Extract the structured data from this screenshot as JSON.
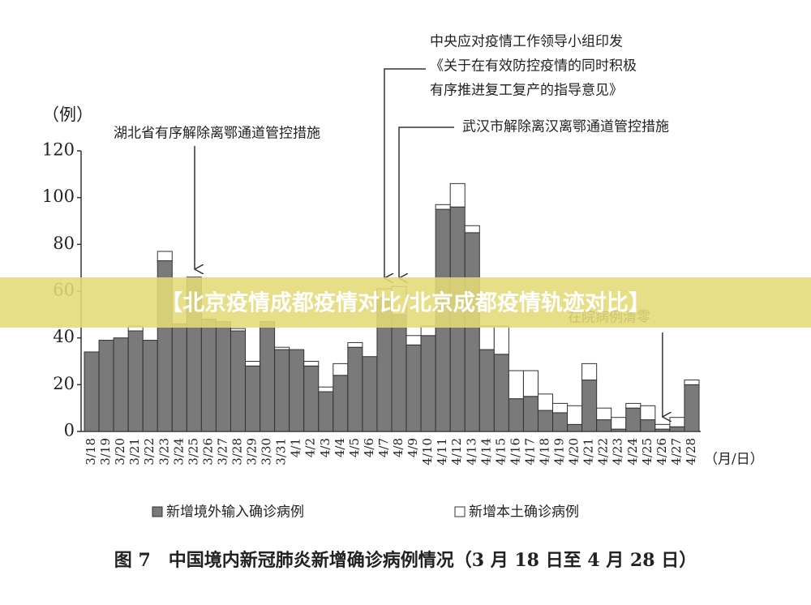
{
  "chart_data": {
    "type": "stacked_bar",
    "y_label": "（例）",
    "x_label": "（月/日）",
    "caption": "图 7　中国境内新冠肺炎新增确诊病例情况（3 月 18 日至 4 月 28 日）",
    "categories": [
      "3/18",
      "3/19",
      "3/20",
      "3/21",
      "3/22",
      "3/23",
      "3/24",
      "3/25",
      "3/26",
      "3/27",
      "3/28",
      "3/29",
      "3/30",
      "3/31",
      "4/1",
      "4/2",
      "4/3",
      "4/4",
      "4/5",
      "4/6",
      "4/7",
      "4/8",
      "4/9",
      "4/10",
      "4/11",
      "4/12",
      "4/13",
      "4/14",
      "4/15",
      "4/16",
      "4/17",
      "4/18",
      "4/19",
      "4/20",
      "4/21",
      "4/22",
      "4/23",
      "4/24",
      "4/25",
      "4/26",
      "4/27",
      "4/28"
    ],
    "series": [
      {
        "name": "新增境外输入确诊病例",
        "color": "#7a7a7a",
        "values": [
          34,
          39,
          40,
          43,
          39,
          73,
          46,
          66,
          48,
          47,
          43,
          28,
          47,
          35,
          35,
          28,
          17,
          24,
          36,
          32,
          57,
          50,
          37,
          41,
          95,
          96,
          85,
          35,
          33,
          14,
          15,
          9,
          8,
          3,
          22,
          5,
          1,
          10,
          5,
          1,
          2,
          20
        ]
      },
      {
        "name": "新增本土确诊病例",
        "color": "#ffffff",
        "values": [
          0,
          0,
          0,
          2,
          0,
          4,
          0,
          0,
          0,
          0,
          1,
          2,
          0,
          1,
          0,
          2,
          2,
          5,
          2,
          0,
          4,
          12,
          4,
          4,
          2,
          10,
          3,
          10,
          12,
          12,
          11,
          7,
          4,
          8,
          7,
          5,
          5,
          2,
          6,
          2,
          4,
          2
        ]
      }
    ],
    "ylim": [
      0,
      120
    ],
    "yticks": [
      0,
      20,
      40,
      60,
      80,
      100,
      120
    ],
    "annotations": [
      {
        "lines": [
          "湖北省有序解除离鄂通道管控措施"
        ]
      },
      {
        "lines": [
          "中央应对疫情工作领导小组印发",
          "《关于在有效防控疫情的同时积极",
          "有序推进复工复产的指导意见》"
        ]
      },
      {
        "lines": [
          "武汉市解除离汉离鄂通道管控措施"
        ]
      },
      {
        "lines": [
          "在院病例清零"
        ]
      }
    ]
  },
  "banner": "【北京疫情成都疫情对比/北京成都疫情轨迹对比】"
}
